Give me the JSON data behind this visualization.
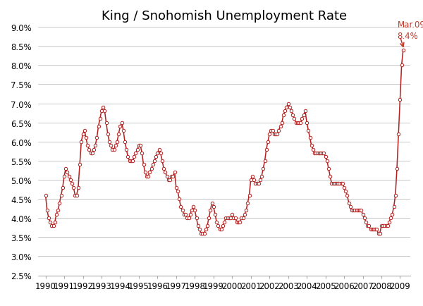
{
  "title": "King / Snohomish Unemployment Rate",
  "line_color": "#B22020",
  "marker_face": "#FFFFFF",
  "background_color": "#FFFFFF",
  "grid_color": "#C8C8C8",
  "annotation_text_line1": "Mar.09",
  "annotation_text_line2": "8.4%",
  "annotation_color": "#C0392B",
  "ylim": [
    0.025,
    0.09
  ],
  "yticks": [
    0.025,
    0.03,
    0.035,
    0.04,
    0.045,
    0.05,
    0.055,
    0.06,
    0.065,
    0.07,
    0.075,
    0.08,
    0.085,
    0.09
  ],
  "ytick_labels": [
    "2.5%",
    "3.0%",
    "3.5%",
    "4.0%",
    "4.5%",
    "5.0%",
    "5.5%",
    "6.0%",
    "6.5%",
    "7.0%",
    "7.5%",
    "8.0%",
    "8.5%",
    "9.0%"
  ],
  "xlim": [
    1989.6,
    2009.55
  ],
  "data": [
    [
      1990.0,
      0.046
    ],
    [
      1990.083,
      0.042
    ],
    [
      1990.167,
      0.04
    ],
    [
      1990.25,
      0.039
    ],
    [
      1990.333,
      0.038
    ],
    [
      1990.417,
      0.038
    ],
    [
      1990.5,
      0.039
    ],
    [
      1990.583,
      0.041
    ],
    [
      1990.667,
      0.042
    ],
    [
      1990.75,
      0.044
    ],
    [
      1990.833,
      0.046
    ],
    [
      1990.917,
      0.048
    ],
    [
      1991.0,
      0.051
    ],
    [
      1991.083,
      0.053
    ],
    [
      1991.167,
      0.052
    ],
    [
      1991.25,
      0.051
    ],
    [
      1991.333,
      0.05
    ],
    [
      1991.417,
      0.049
    ],
    [
      1991.5,
      0.048
    ],
    [
      1991.583,
      0.046
    ],
    [
      1991.667,
      0.046
    ],
    [
      1991.75,
      0.048
    ],
    [
      1991.833,
      0.054
    ],
    [
      1991.917,
      0.06
    ],
    [
      1992.0,
      0.062
    ],
    [
      1992.083,
      0.063
    ],
    [
      1992.167,
      0.061
    ],
    [
      1992.25,
      0.059
    ],
    [
      1992.333,
      0.058
    ],
    [
      1992.417,
      0.057
    ],
    [
      1992.5,
      0.057
    ],
    [
      1992.583,
      0.058
    ],
    [
      1992.667,
      0.059
    ],
    [
      1992.75,
      0.061
    ],
    [
      1992.833,
      0.064
    ],
    [
      1992.917,
      0.066
    ],
    [
      1993.0,
      0.068
    ],
    [
      1993.083,
      0.069
    ],
    [
      1993.167,
      0.068
    ],
    [
      1993.25,
      0.065
    ],
    [
      1993.333,
      0.062
    ],
    [
      1993.417,
      0.06
    ],
    [
      1993.5,
      0.059
    ],
    [
      1993.583,
      0.058
    ],
    [
      1993.667,
      0.058
    ],
    [
      1993.75,
      0.059
    ],
    [
      1993.833,
      0.06
    ],
    [
      1993.917,
      0.062
    ],
    [
      1994.0,
      0.064
    ],
    [
      1994.083,
      0.065
    ],
    [
      1994.167,
      0.063
    ],
    [
      1994.25,
      0.06
    ],
    [
      1994.333,
      0.058
    ],
    [
      1994.417,
      0.056
    ],
    [
      1994.5,
      0.055
    ],
    [
      1994.583,
      0.055
    ],
    [
      1994.667,
      0.055
    ],
    [
      1994.75,
      0.056
    ],
    [
      1994.833,
      0.057
    ],
    [
      1994.917,
      0.058
    ],
    [
      1995.0,
      0.059
    ],
    [
      1995.083,
      0.059
    ],
    [
      1995.167,
      0.057
    ],
    [
      1995.25,
      0.054
    ],
    [
      1995.333,
      0.052
    ],
    [
      1995.417,
      0.051
    ],
    [
      1995.5,
      0.051
    ],
    [
      1995.583,
      0.052
    ],
    [
      1995.667,
      0.053
    ],
    [
      1995.75,
      0.054
    ],
    [
      1995.833,
      0.055
    ],
    [
      1995.917,
      0.056
    ],
    [
      1996.0,
      0.057
    ],
    [
      1996.083,
      0.058
    ],
    [
      1996.167,
      0.057
    ],
    [
      1996.25,
      0.055
    ],
    [
      1996.333,
      0.053
    ],
    [
      1996.417,
      0.052
    ],
    [
      1996.5,
      0.051
    ],
    [
      1996.583,
      0.05
    ],
    [
      1996.667,
      0.05
    ],
    [
      1996.75,
      0.051
    ],
    [
      1996.833,
      0.051
    ],
    [
      1996.917,
      0.052
    ],
    [
      1997.0,
      0.048
    ],
    [
      1997.083,
      0.047
    ],
    [
      1997.167,
      0.045
    ],
    [
      1997.25,
      0.043
    ],
    [
      1997.333,
      0.042
    ],
    [
      1997.417,
      0.041
    ],
    [
      1997.5,
      0.041
    ],
    [
      1997.583,
      0.04
    ],
    [
      1997.667,
      0.04
    ],
    [
      1997.75,
      0.041
    ],
    [
      1997.833,
      0.042
    ],
    [
      1997.917,
      0.043
    ],
    [
      1998.0,
      0.042
    ],
    [
      1998.083,
      0.04
    ],
    [
      1998.167,
      0.038
    ],
    [
      1998.25,
      0.037
    ],
    [
      1998.333,
      0.036
    ],
    [
      1998.417,
      0.036
    ],
    [
      1998.5,
      0.036
    ],
    [
      1998.583,
      0.037
    ],
    [
      1998.667,
      0.038
    ],
    [
      1998.75,
      0.04
    ],
    [
      1998.833,
      0.042
    ],
    [
      1998.917,
      0.044
    ],
    [
      1999.0,
      0.043
    ],
    [
      1999.083,
      0.041
    ],
    [
      1999.167,
      0.039
    ],
    [
      1999.25,
      0.038
    ],
    [
      1999.333,
      0.037
    ],
    [
      1999.417,
      0.037
    ],
    [
      1999.5,
      0.038
    ],
    [
      1999.583,
      0.039
    ],
    [
      1999.667,
      0.04
    ],
    [
      1999.75,
      0.04
    ],
    [
      1999.833,
      0.04
    ],
    [
      1999.917,
      0.04
    ],
    [
      2000.0,
      0.041
    ],
    [
      2000.083,
      0.04
    ],
    [
      2000.167,
      0.04
    ],
    [
      2000.25,
      0.039
    ],
    [
      2000.333,
      0.039
    ],
    [
      2000.417,
      0.039
    ],
    [
      2000.5,
      0.04
    ],
    [
      2000.583,
      0.04
    ],
    [
      2000.667,
      0.041
    ],
    [
      2000.75,
      0.042
    ],
    [
      2000.833,
      0.044
    ],
    [
      2000.917,
      0.046
    ],
    [
      2001.0,
      0.05
    ],
    [
      2001.083,
      0.051
    ],
    [
      2001.167,
      0.05
    ],
    [
      2001.25,
      0.049
    ],
    [
      2001.333,
      0.049
    ],
    [
      2001.417,
      0.049
    ],
    [
      2001.5,
      0.05
    ],
    [
      2001.583,
      0.051
    ],
    [
      2001.667,
      0.053
    ],
    [
      2001.75,
      0.055
    ],
    [
      2001.833,
      0.058
    ],
    [
      2001.917,
      0.06
    ],
    [
      2002.0,
      0.062
    ],
    [
      2002.083,
      0.063
    ],
    [
      2002.167,
      0.063
    ],
    [
      2002.25,
      0.062
    ],
    [
      2002.333,
      0.062
    ],
    [
      2002.417,
      0.062
    ],
    [
      2002.5,
      0.063
    ],
    [
      2002.583,
      0.064
    ],
    [
      2002.667,
      0.065
    ],
    [
      2002.75,
      0.067
    ],
    [
      2002.833,
      0.068
    ],
    [
      2002.917,
      0.069
    ],
    [
      2003.0,
      0.07
    ],
    [
      2003.083,
      0.069
    ],
    [
      2003.167,
      0.068
    ],
    [
      2003.25,
      0.067
    ],
    [
      2003.333,
      0.066
    ],
    [
      2003.417,
      0.065
    ],
    [
      2003.5,
      0.065
    ],
    [
      2003.583,
      0.065
    ],
    [
      2003.667,
      0.065
    ],
    [
      2003.75,
      0.066
    ],
    [
      2003.833,
      0.067
    ],
    [
      2003.917,
      0.068
    ],
    [
      2004.0,
      0.065
    ],
    [
      2004.083,
      0.063
    ],
    [
      2004.167,
      0.061
    ],
    [
      2004.25,
      0.059
    ],
    [
      2004.333,
      0.058
    ],
    [
      2004.417,
      0.057
    ],
    [
      2004.5,
      0.057
    ],
    [
      2004.583,
      0.057
    ],
    [
      2004.667,
      0.057
    ],
    [
      2004.75,
      0.057
    ],
    [
      2004.833,
      0.057
    ],
    [
      2004.917,
      0.057
    ],
    [
      2005.0,
      0.056
    ],
    [
      2005.083,
      0.055
    ],
    [
      2005.167,
      0.053
    ],
    [
      2005.25,
      0.051
    ],
    [
      2005.333,
      0.049
    ],
    [
      2005.417,
      0.049
    ],
    [
      2005.5,
      0.049
    ],
    [
      2005.583,
      0.049
    ],
    [
      2005.667,
      0.049
    ],
    [
      2005.75,
      0.049
    ],
    [
      2005.833,
      0.049
    ],
    [
      2005.917,
      0.049
    ],
    [
      2006.0,
      0.048
    ],
    [
      2006.083,
      0.047
    ],
    [
      2006.167,
      0.046
    ],
    [
      2006.25,
      0.044
    ],
    [
      2006.333,
      0.043
    ],
    [
      2006.417,
      0.042
    ],
    [
      2006.5,
      0.042
    ],
    [
      2006.583,
      0.042
    ],
    [
      2006.667,
      0.042
    ],
    [
      2006.75,
      0.042
    ],
    [
      2006.833,
      0.042
    ],
    [
      2006.917,
      0.042
    ],
    [
      2007.0,
      0.041
    ],
    [
      2007.083,
      0.04
    ],
    [
      2007.167,
      0.039
    ],
    [
      2007.25,
      0.038
    ],
    [
      2007.333,
      0.038
    ],
    [
      2007.417,
      0.037
    ],
    [
      2007.5,
      0.037
    ],
    [
      2007.583,
      0.037
    ],
    [
      2007.667,
      0.037
    ],
    [
      2007.75,
      0.037
    ],
    [
      2007.833,
      0.036
    ],
    [
      2007.917,
      0.036
    ],
    [
      2008.0,
      0.038
    ],
    [
      2008.083,
      0.038
    ],
    [
      2008.167,
      0.038
    ],
    [
      2008.25,
      0.038
    ],
    [
      2008.333,
      0.038
    ],
    [
      2008.417,
      0.039
    ],
    [
      2008.5,
      0.04
    ],
    [
      2008.583,
      0.041
    ],
    [
      2008.667,
      0.043
    ],
    [
      2008.75,
      0.046
    ],
    [
      2008.833,
      0.053
    ],
    [
      2008.917,
      0.062
    ],
    [
      2009.0,
      0.071
    ],
    [
      2009.083,
      0.08
    ],
    [
      2009.167,
      0.084
    ]
  ]
}
